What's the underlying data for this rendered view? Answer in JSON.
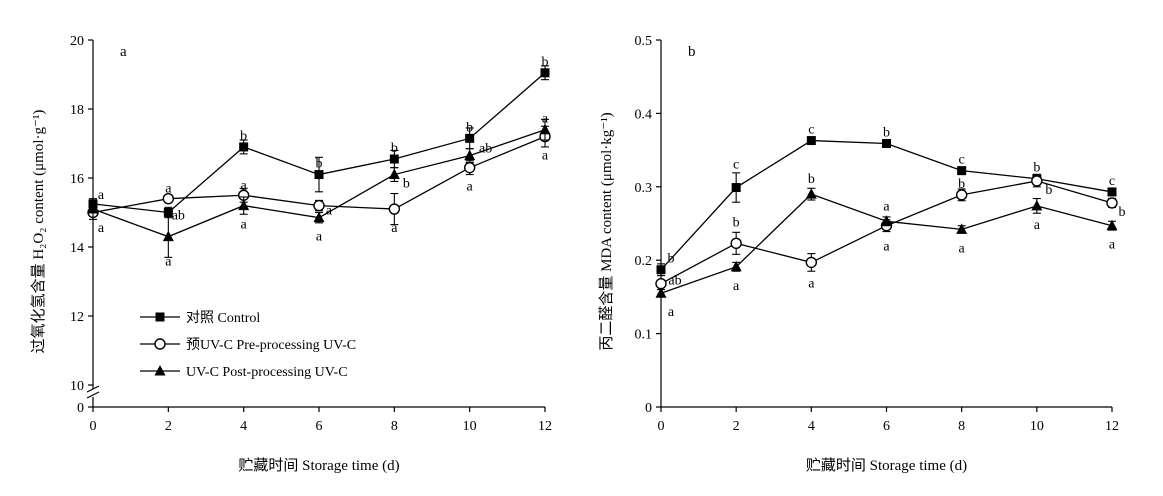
{
  "chart_data": [
    {
      "type": "line",
      "panel_label": "a",
      "ylabel": "过氧化氢含量 H₂O₂ content (μmol·g⁻¹)",
      "xlabel": "贮藏时间 Storage time (d)",
      "x": [
        0,
        2,
        4,
        6,
        8,
        10,
        12
      ],
      "x_ticks": [
        "0",
        "2",
        "4",
        "6",
        "8",
        "10",
        "12"
      ],
      "xlim": [
        0,
        12
      ],
      "ylim": [
        10,
        20
      ],
      "y_ticks": [
        "10",
        "12",
        "14",
        "16",
        "18",
        "20"
      ],
      "axis_break_zero_label": "0",
      "grid": false,
      "legend_position": "bottom-left",
      "series": [
        {
          "name": "对照 Control",
          "marker": "filled-square",
          "values": [
            15.25,
            15.0,
            16.9,
            16.1,
            16.55,
            17.15,
            19.05
          ],
          "errors": [
            0.1,
            0.15,
            0.2,
            0.5,
            0.25,
            0.3,
            0.2
          ],
          "letters": [
            "a",
            "ab",
            "b",
            "b",
            "b",
            "b",
            "b"
          ]
        },
        {
          "name": "预UV-C Pre-processing UV-C",
          "marker": "open-circle",
          "values": [
            15.0,
            15.4,
            15.5,
            15.2,
            15.1,
            16.3,
            17.2
          ],
          "errors": [
            0.1,
            0.1,
            0.2,
            0.15,
            0.45,
            0.2,
            0.3
          ],
          "letters": [
            "a",
            "a",
            "a",
            "a",
            "a",
            "a",
            "a"
          ]
        },
        {
          "name": "UV-C   Post-processing UV-C",
          "marker": "filled-triangle",
          "values": [
            15.1,
            14.3,
            15.2,
            14.85,
            16.1,
            16.65,
            17.4
          ],
          "errors": [
            0.3,
            0.6,
            0.25,
            0.15,
            0.2,
            0.2,
            0.3
          ],
          "letters": [
            "a",
            "a",
            "a",
            "a",
            "b",
            "ab",
            "a"
          ]
        }
      ]
    },
    {
      "type": "line",
      "panel_label": "b",
      "ylabel": "丙二醛含量 MDA content (μmol·kg⁻¹)",
      "xlabel": "贮藏时间 Storage time (d)",
      "x": [
        0,
        2,
        4,
        6,
        8,
        10,
        12
      ],
      "x_ticks": [
        "0",
        "2",
        "4",
        "6",
        "8",
        "10",
        "12"
      ],
      "xlim": [
        0,
        12
      ],
      "ylim": [
        0,
        0.5
      ],
      "y_ticks": [
        "0",
        "0.1",
        "0.2",
        "0.3",
        "0.4",
        "0.5"
      ],
      "grid": false,
      "series": [
        {
          "name": "对照 Control",
          "marker": "filled-square",
          "values": [
            0.187,
            0.299,
            0.363,
            0.359,
            0.322,
            0.311,
            0.293
          ],
          "errors": [
            0.008,
            0.02,
            0.004,
            0.004,
            0.005,
            0.006,
            0.005
          ],
          "letters": [
            "b",
            "c",
            "c",
            "b",
            "c",
            "b",
            "c"
          ]
        },
        {
          "name": "预UV-C Pre-processing UV-C",
          "marker": "open-circle",
          "values": [
            0.168,
            0.223,
            0.197,
            0.247,
            0.289,
            0.308,
            0.278
          ],
          "errors": [
            0.005,
            0.015,
            0.012,
            0.008,
            0.008,
            0.008,
            0.006
          ],
          "letters": [
            "ab",
            "b",
            "a",
            "a",
            "b",
            "b",
            "b"
          ]
        },
        {
          "name": "UV-C   Post-processing UV-C",
          "marker": "filled-triangle",
          "values": [
            0.155,
            0.191,
            0.29,
            0.253,
            0.242,
            0.274,
            0.247
          ],
          "errors": [
            0.005,
            0.006,
            0.008,
            0.006,
            0.005,
            0.01,
            0.006
          ],
          "letters": [
            "a",
            "a",
            "b",
            "a",
            "a",
            "a",
            "a"
          ]
        }
      ]
    }
  ]
}
